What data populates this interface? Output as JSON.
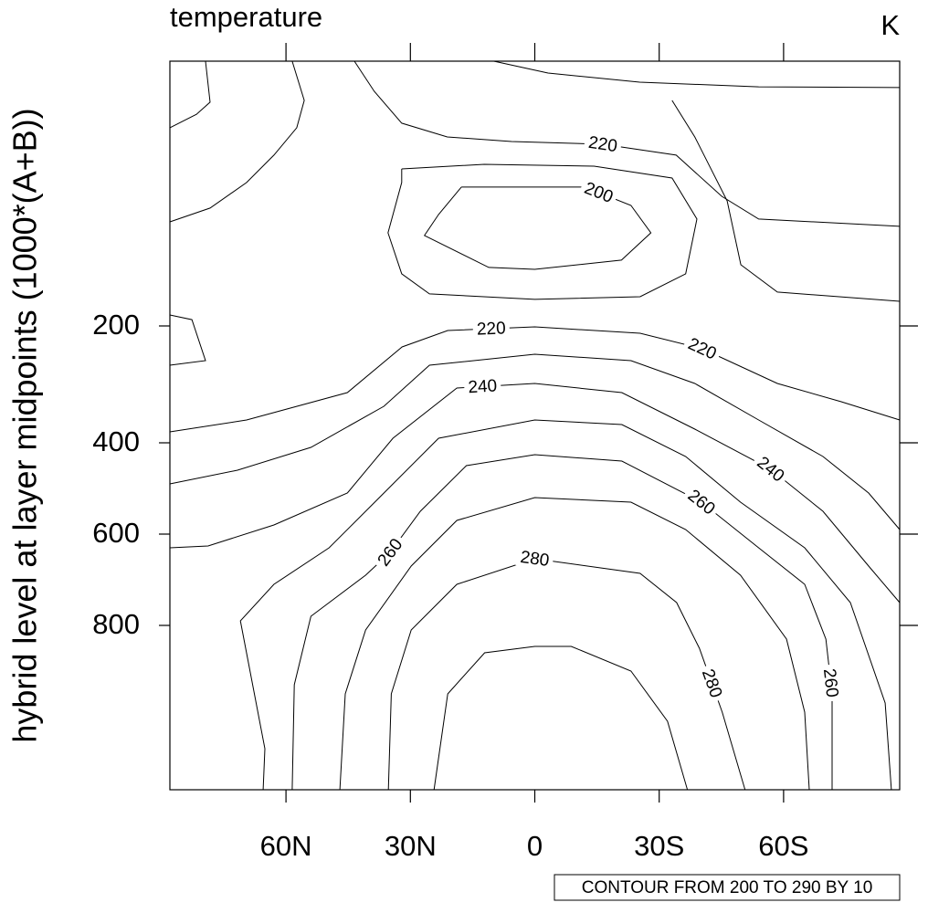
{
  "chart_data": {
    "type": "contour",
    "title": "temperature",
    "units": "K",
    "ylabel": "hybrid level at layer midpoints (1000*(A+B))",
    "contour_info": "CONTOUR FROM 200 TO 290 BY 10",
    "xlim": [
      88,
      -88
    ],
    "xticks": [
      {
        "value": 60,
        "label": "60N"
      },
      {
        "value": 30,
        "label": "30N"
      },
      0,
      {
        "value": -30,
        "label": "30S"
      },
      {
        "value": -60,
        "label": "60S"
      }
    ],
    "ylim": [
      3.6,
      992
    ],
    "yticks": [
      200,
      400,
      600,
      800
    ],
    "color": "#000000",
    "contours": [
      {
        "x": [
          88,
          81.6,
          78.3,
          79.4
        ],
        "y": [
          53,
          43,
          34,
          3.6
        ]
      },
      {
        "x": [
          88,
          78.3,
          69.5,
          62.9,
          57.4,
          55.6,
          58.5
        ],
        "y": [
          122.8,
          112.6,
          93.6,
          73.3,
          53,
          32.7,
          3.6
        ]
      },
      {
        "level": 220,
        "x": [
          43.5,
          38.7,
          32.1,
          21.1,
          5.6,
          -16.4,
          -34.1,
          -45.1,
          -54,
          -88
        ],
        "y": [
          3.6,
          26,
          49.6,
          59.8,
          63.2,
          65.2,
          73.3,
          103.8,
          120.7,
          126.1
        ]
      },
      {
        "x": [
          9.9,
          -3.2,
          -25.3,
          -54,
          -88
        ],
        "y": [
          3.6,
          12.4,
          19.2,
          22.6,
          23.2
        ]
      },
      {
        "x": [
          -33.1,
          -38.6,
          -46.4,
          -49.7,
          -58.5,
          -88
        ],
        "y": [
          32.7,
          59.8,
          107.2,
          154.6,
          174.9,
          181.7
        ]
      },
      {
        "x": [
          32.1,
          12.2,
          -14.3,
          -33.1,
          -39.1,
          -36.4,
          -25.4,
          0,
          25.4,
          32.1,
          35.4,
          32.1,
          32.1
        ],
        "y": [
          83.5,
          80.1,
          81.5,
          90.3,
          120.7,
          161.3,
          178.3,
          180.3,
          176.2,
          161.3,
          130.9,
          93.6,
          83.5
        ]
      },
      {
        "level": 200,
        "x": [
          17.7,
          -12.1,
          -23.2,
          -28,
          -20.9,
          0,
          11.1,
          26.6,
          23.2,
          17.7
        ],
        "y": [
          97,
          97,
          110.6,
          130.9,
          151.2,
          158,
          156.6,
          132.9,
          117.3,
          97
        ]
      },
      {
        "x": [
          88,
          82.7,
          79.4,
          88
        ],
        "y": [
          191.9,
          195.3,
          259.4,
          267.2
        ]
      },
      {
        "level": 220,
        "x": [
          88,
          69.5,
          45.2,
          32,
          21,
          0,
          -25.4,
          -40.4,
          -58.5,
          -73.9,
          -88
        ],
        "y": [
          381.3,
          360.9,
          314.1,
          235.9,
          207.8,
          201.6,
          212.5,
          239.1,
          298.4,
          329.7,
          360.9
        ]
      },
      {
        "x": [
          88,
          71.7,
          54,
          36.4,
          25.4,
          0,
          -23.2,
          -38.6,
          -54,
          -69.5,
          -80.5,
          -88
        ],
        "y": [
          490,
          460,
          410,
          337.5,
          267.2,
          248.4,
          259.4,
          298.4,
          360.9,
          430,
          510,
          590
        ]
      },
      {
        "level": 240,
        "x": [
          88,
          78.8,
          62.9,
          45.2,
          34.2,
          18.8,
          0,
          -21,
          -38.6,
          -56.9,
          -69.5,
          -80.5,
          -88
        ],
        "y": [
          630,
          626,
          580,
          510,
          392.2,
          306.2,
          298.4,
          314.1,
          376.6,
          458,
          550,
          670,
          750
        ]
      },
      {
        "x": [
          65.5,
          65.1,
          71,
          62.9,
          49.6,
          36.4,
          23.2,
          0,
          -21,
          -36.4,
          -49.6,
          -65.1,
          -76.1,
          -84.5,
          -86
        ],
        "y": [
          992,
          944,
          790,
          710,
          630,
          510,
          392.2,
          360.9,
          368.8,
          430,
          530,
          630,
          750,
          890.7,
          992
        ]
      },
      {
        "level": 260,
        "x": [
          58.5,
          58,
          54,
          40.8,
          34.9,
          27.6,
          16.5,
          0,
          -21,
          -40.2,
          -54,
          -65.1,
          -70.2,
          -71.7,
          -71.7
        ],
        "y": [
          992,
          869.3,
          780,
          690,
          640,
          550,
          450,
          426,
          440,
          530,
          630,
          710,
          816,
          880,
          992
        ]
      },
      {
        "x": [
          47,
          45.7,
          40.8,
          29.8,
          18.8,
          0,
          -23.2,
          -36.4,
          -49.6,
          -60.7,
          -65.1,
          -66.2
        ],
        "y": [
          992,
          880,
          805.3,
          670,
          570,
          520,
          530,
          590,
          690,
          816,
          901.3,
          992
        ]
      },
      {
        "level": 280,
        "x": [
          35.3,
          34.6,
          29.8,
          18.8,
          0,
          -25.4,
          -34.2,
          -39.7,
          -45.2,
          -50.7
        ],
        "y": [
          992,
          880,
          805.3,
          710,
          654,
          686,
          750,
          826.7,
          901.3,
          992
        ]
      },
      {
        "x": [
          24.3,
          21,
          12.1,
          0,
          -8.8,
          -23.2,
          -32,
          -36.8
        ],
        "y": [
          992,
          880,
          832,
          824.5,
          824.5,
          853.3,
          912,
          992
        ]
      }
    ]
  }
}
